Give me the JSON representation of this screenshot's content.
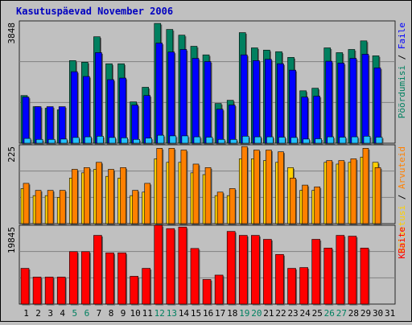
{
  "title": "Kasutuspäevad November 2006",
  "colors": {
    "background": "#c0c0c0",
    "title": "#0000c0",
    "pages": "#008060",
    "files": "#0000ff",
    "hits": "#22c0ff",
    "visitors": "#ffd000",
    "visits": "#ff8000",
    "kbytes": "#ff0000",
    "grid": "#808080",
    "dayNormal": "#000000",
    "dayWeekend": "#008060"
  },
  "chart_data": [
    {
      "type": "bar",
      "name": "top-panel",
      "ymax_label": "3848",
      "ylim": [
        0,
        3848
      ],
      "legend": [
        {
          "label": "Faile",
          "color": "#0000ff"
        },
        {
          "label": "Pöördumisi",
          "color": "#008060"
        }
      ],
      "series": [
        {
          "name": "Pöördumisi",
          "values": [
            1500,
            1150,
            1100,
            1050,
            2600,
            2550,
            3350,
            2500,
            2500,
            1300,
            1760,
            3770,
            3580,
            3400,
            3050,
            2780,
            1250,
            1350,
            3480,
            3000,
            2930,
            2880,
            2700,
            1650,
            1730,
            3000,
            2850,
            2950,
            3220,
            2750,
            0
          ]
        },
        {
          "name": "Faile",
          "values": [
            1450,
            1150,
            1150,
            1150,
            2250,
            2100,
            2850,
            2000,
            2050,
            1200,
            1500,
            3150,
            2870,
            2950,
            2670,
            2570,
            1070,
            1200,
            2780,
            2600,
            2640,
            2500,
            2300,
            1450,
            1480,
            2580,
            2520,
            2670,
            2800,
            2370,
            0
          ]
        },
        {
          "name": "hits",
          "values": [
            150,
            120,
            120,
            130,
            180,
            200,
            220,
            180,
            170,
            120,
            160,
            250,
            230,
            230,
            200,
            190,
            120,
            120,
            220,
            200,
            200,
            190,
            180,
            130,
            140,
            200,
            190,
            200,
            220,
            190,
            0
          ]
        }
      ]
    },
    {
      "type": "bar",
      "name": "middle-panel",
      "ymax_label": "225",
      "ylim": [
        0,
        225
      ],
      "legend": [
        {
          "label": "Arvuteid",
          "color": "#ff8000"
        },
        {
          "label": "Külastusi",
          "color": "#ffd000"
        }
      ],
      "series": [
        {
          "name": "Külastusi",
          "values": [
            100,
            80,
            80,
            75,
            130,
            145,
            155,
            135,
            130,
            80,
            90,
            185,
            175,
            175,
            145,
            140,
            80,
            80,
            185,
            185,
            180,
            175,
            160,
            95,
            95,
            175,
            170,
            175,
            190,
            175,
            0
          ]
        },
        {
          "name": "Arvuteid",
          "values": [
            115,
            95,
            95,
            95,
            155,
            160,
            175,
            155,
            160,
            95,
            115,
            215,
            215,
            210,
            170,
            160,
            90,
            100,
            220,
            210,
            210,
            205,
            130,
            110,
            105,
            180,
            180,
            185,
            215,
            160,
            0
          ]
        }
      ]
    },
    {
      "type": "bar",
      "name": "bottom-panel",
      "ymax_label": "19845",
      "ylim": [
        0,
        19845
      ],
      "legend": [
        {
          "label": "KBaite",
          "color": "#ff0000"
        }
      ],
      "series": [
        {
          "name": "KBaite",
          "values": [
            9000,
            6800,
            6800,
            6800,
            13200,
            13200,
            17300,
            12900,
            12900,
            7000,
            9000,
            19845,
            19000,
            19400,
            14000,
            6200,
            7300,
            18300,
            17300,
            17300,
            16300,
            12500,
            9000,
            9200,
            16300,
            14100,
            17300,
            17100,
            14100,
            0,
            0
          ]
        }
      ]
    }
  ],
  "days": [
    "1",
    "2",
    "3",
    "4",
    "5",
    "6",
    "7",
    "8",
    "9",
    "10",
    "11",
    "12",
    "13",
    "14",
    "15",
    "16",
    "17",
    "18",
    "19",
    "20",
    "21",
    "22",
    "23",
    "24",
    "25",
    "26",
    "27",
    "28",
    "29",
    "30",
    "31"
  ],
  "weekend_days": [
    4,
    5,
    11,
    12,
    18,
    19,
    25,
    26
  ]
}
